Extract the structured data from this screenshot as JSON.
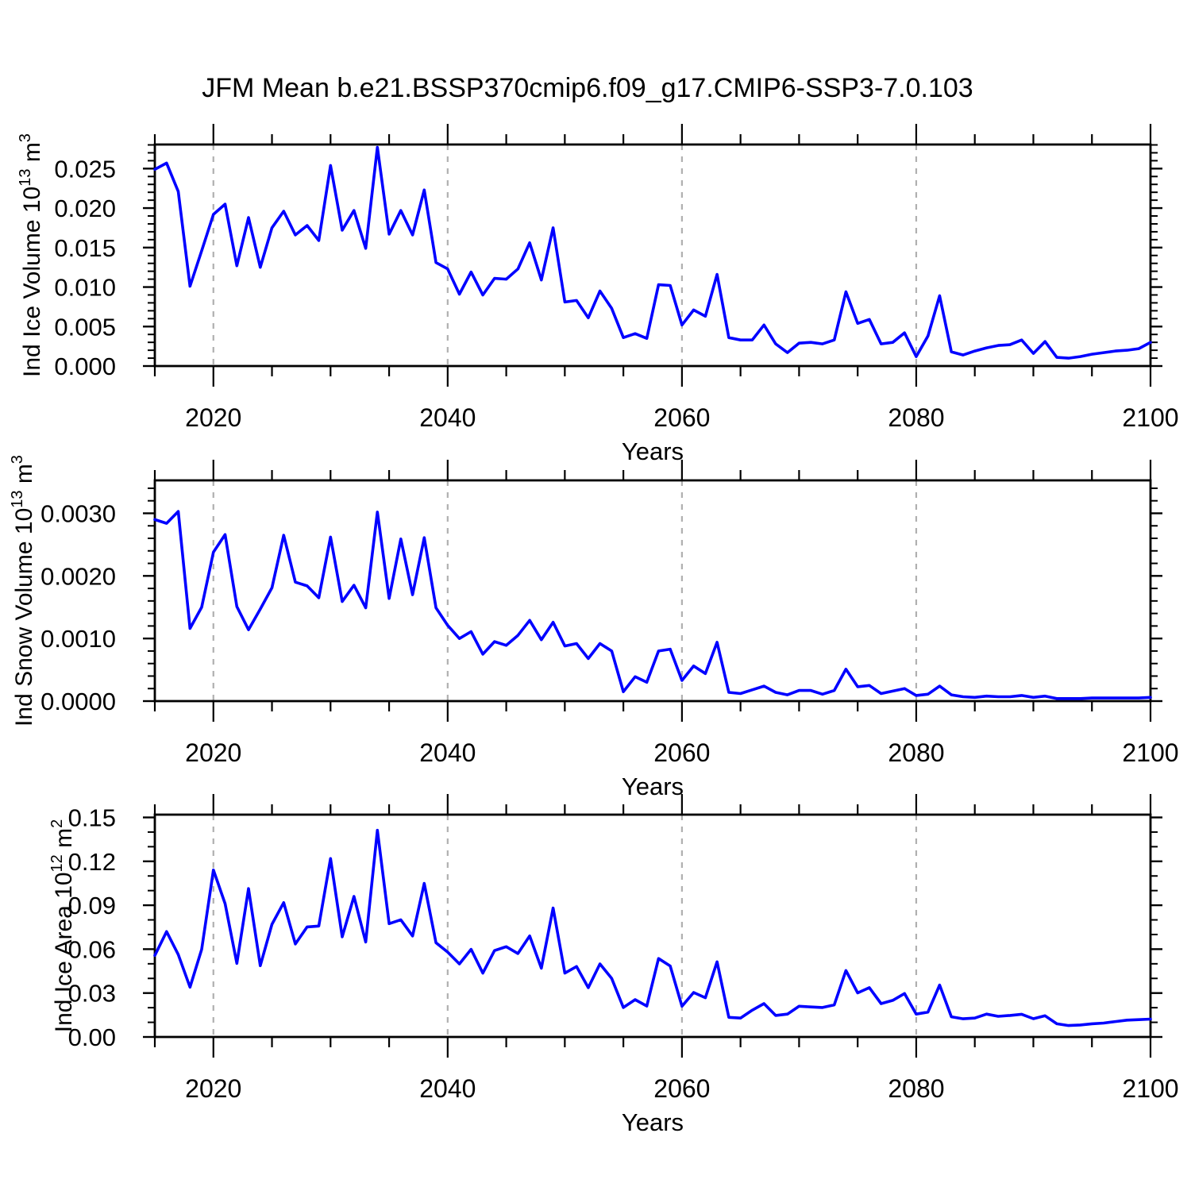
{
  "title": "JFM Mean b.e21.BSSP370cmip6.f09_g17.CMIP6-SSP3-7.0.103",
  "line_color": "#0000ff",
  "gridline_color": "#b0b0b0",
  "axis_color": "#000000",
  "chart_data": [
    {
      "type": "line",
      "name": "ice-volume",
      "ylabel": "Ind Ice Volume 10^13 m^3",
      "ylabel_parts": [
        {
          "t": "Ind Ice Volume 10"
        },
        {
          "t": "13",
          "sup": true
        },
        {
          "t": " m"
        },
        {
          "t": "3",
          "sup": true
        }
      ],
      "xlabel": "Years",
      "x_start": 2015,
      "x_end": 2100,
      "x_step": 1,
      "xticks": [
        2020,
        2040,
        2060,
        2080,
        2100
      ],
      "x_minor_step": 5,
      "grid_years": [
        2020,
        2040,
        2060,
        2080
      ],
      "ylim": [
        0,
        0.02805
      ],
      "yticks": [
        0.0,
        0.005,
        0.01,
        0.015,
        0.02,
        0.025
      ],
      "ytick_labels": [
        "0.000",
        "0.005",
        "0.010",
        "0.015",
        "0.020",
        "0.025"
      ],
      "y_minor_step": 0.001,
      "values": [
        0.0249,
        0.0257,
        0.0221,
        0.0101,
        0.0146,
        0.0192,
        0.0205,
        0.0127,
        0.0188,
        0.0125,
        0.0175,
        0.0196,
        0.0166,
        0.0178,
        0.0159,
        0.0254,
        0.0172,
        0.0197,
        0.0149,
        0.0277,
        0.0167,
        0.0197,
        0.0166,
        0.0223,
        0.0131,
        0.0123,
        0.0091,
        0.0119,
        0.009,
        0.0111,
        0.011,
        0.0123,
        0.0156,
        0.0109,
        0.0175,
        0.0081,
        0.0083,
        0.0061,
        0.0095,
        0.0073,
        0.0036,
        0.0041,
        0.0035,
        0.0103,
        0.0102,
        0.0052,
        0.0071,
        0.0063,
        0.0116,
        0.0036,
        0.0033,
        0.0033,
        0.0052,
        0.0028,
        0.0017,
        0.0029,
        0.003,
        0.0028,
        0.0033,
        0.0094,
        0.0054,
        0.0059,
        0.0028,
        0.003,
        0.0042,
        0.0012,
        0.0038,
        0.0089,
        0.0018,
        0.0014,
        0.0019,
        0.0023,
        0.0026,
        0.0027,
        0.0033,
        0.0016,
        0.0031,
        0.0011,
        0.001,
        0.0012,
        0.0015,
        0.0017,
        0.0019,
        0.002,
        0.0022,
        0.003
      ]
    },
    {
      "type": "line",
      "name": "snow-volume",
      "ylabel": "Ind Snow Volume 10^13 m^3",
      "ylabel_parts": [
        {
          "t": "Ind Snow Volume 10"
        },
        {
          "t": "13",
          "sup": true
        },
        {
          "t": " m"
        },
        {
          "t": "3",
          "sup": true
        }
      ],
      "xlabel": "Years",
      "x_start": 2015,
      "x_end": 2100,
      "x_step": 1,
      "xticks": [
        2020,
        2040,
        2060,
        2080,
        2100
      ],
      "x_minor_step": 5,
      "grid_years": [
        2020,
        2040,
        2060,
        2080
      ],
      "ylim": [
        0,
        0.003526
      ],
      "yticks": [
        0.0,
        0.001,
        0.002,
        0.003
      ],
      "ytick_labels": [
        "0.0000",
        "0.0010",
        "0.0020",
        "0.0030"
      ],
      "y_minor_step": 0.0002,
      "values": [
        0.0029,
        0.00284,
        0.00303,
        0.00116,
        0.0015,
        0.00238,
        0.00266,
        0.00151,
        0.00114,
        0.00147,
        0.00181,
        0.00265,
        0.0019,
        0.00184,
        0.00165,
        0.00262,
        0.00159,
        0.00185,
        0.00149,
        0.00302,
        0.00164,
        0.00259,
        0.0017,
        0.00261,
        0.00149,
        0.00121,
        0.001,
        0.00111,
        0.00075,
        0.00095,
        0.00089,
        0.00105,
        0.00129,
        0.00098,
        0.00126,
        0.00088,
        0.00092,
        0.00068,
        0.00092,
        0.0008,
        0.00015,
        0.00039,
        0.0003,
        0.0008,
        0.00083,
        0.00033,
        0.00056,
        0.00044,
        0.00094,
        0.00014,
        0.00012,
        0.00018,
        0.00024,
        0.00014,
        0.0001,
        0.00017,
        0.00017,
        0.00011,
        0.00017,
        0.00051,
        0.00023,
        0.00025,
        0.00012,
        0.00016,
        0.0002,
        9e-05,
        0.00011,
        0.00024,
        0.0001,
        7e-05,
        6e-05,
        8e-05,
        7e-05,
        7e-05,
        9e-05,
        6e-05,
        8e-05,
        4e-05,
        4e-05,
        4e-05,
        5e-05,
        5e-05,
        5e-05,
        5e-05,
        5e-05,
        6e-05
      ]
    },
    {
      "type": "line",
      "name": "ice-area",
      "ylabel": "Ind Ice Area 10^12 m^2",
      "ylabel_parts": [
        {
          "t": "Ind Ice Area 10"
        },
        {
          "t": "12",
          "sup": true
        },
        {
          "t": " m"
        },
        {
          "t": "2",
          "sup": true
        }
      ],
      "xlabel": "Years",
      "x_start": 2015,
      "x_end": 2100,
      "x_step": 1,
      "xticks": [
        2020,
        2040,
        2060,
        2080,
        2100
      ],
      "x_minor_step": 5,
      "grid_years": [
        2020,
        2040,
        2060,
        2080
      ],
      "ylim": [
        0,
        0.1519
      ],
      "yticks": [
        0.0,
        0.03,
        0.06,
        0.09,
        0.12,
        0.15
      ],
      "ytick_labels": [
        "0.00",
        "0.03",
        "0.06",
        "0.09",
        "0.12",
        "0.15"
      ],
      "y_minor_step": 0.01,
      "values": [
        0.0557,
        0.072,
        0.0563,
        0.034,
        0.0599,
        0.1141,
        0.0911,
        0.0503,
        0.1014,
        0.0487,
        0.077,
        0.0918,
        0.0635,
        0.0752,
        0.0758,
        0.1219,
        0.0684,
        0.096,
        0.0649,
        0.1412,
        0.0774,
        0.0801,
        0.069,
        0.1049,
        0.0644,
        0.058,
        0.0499,
        0.0599,
        0.0436,
        0.059,
        0.0617,
        0.057,
        0.069,
        0.047,
        0.0881,
        0.0436,
        0.0481,
        0.0337,
        0.0499,
        0.04,
        0.0201,
        0.0255,
        0.0211,
        0.0536,
        0.0485,
        0.021,
        0.0304,
        0.0268,
        0.0514,
        0.0134,
        0.0129,
        0.0183,
        0.0228,
        0.0147,
        0.0156,
        0.021,
        0.0205,
        0.0201,
        0.0219,
        0.0454,
        0.0301,
        0.0337,
        0.0228,
        0.025,
        0.0297,
        0.0156,
        0.017,
        0.0355,
        0.0138,
        0.0124,
        0.0129,
        0.0156,
        0.0141,
        0.0147,
        0.0155,
        0.0125,
        0.0145,
        0.009,
        0.0078,
        0.0082,
        0.009,
        0.0095,
        0.0105,
        0.0115,
        0.0118,
        0.0122
      ]
    }
  ]
}
